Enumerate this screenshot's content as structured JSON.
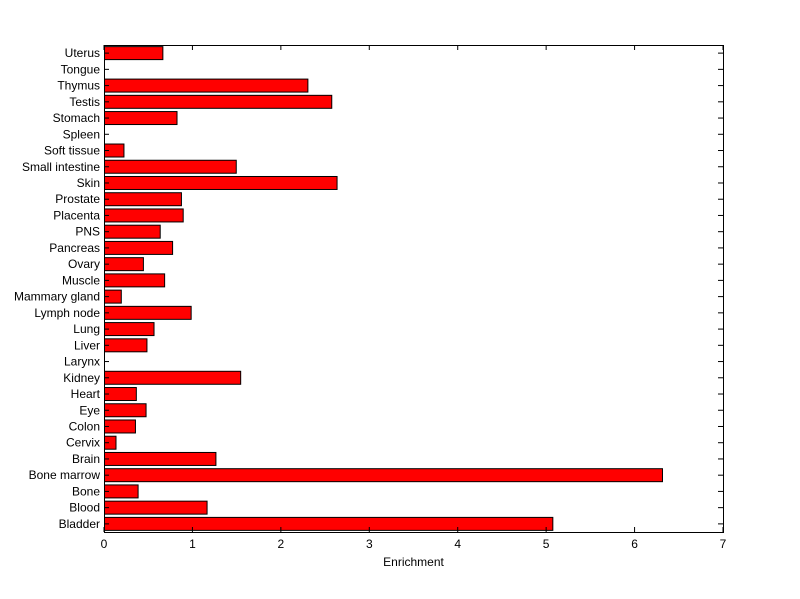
{
  "chart_data": {
    "type": "bar",
    "orientation": "horizontal",
    "title": "",
    "xlabel": "Enrichment",
    "ylabel": "",
    "xlim": [
      0,
      7
    ],
    "xticks": [
      "0",
      "1",
      "2",
      "3",
      "4",
      "5",
      "6",
      "7"
    ],
    "grid": false,
    "bar_color": "#ff0000",
    "bar_edge_color": "#000000",
    "categories": [
      "Bladder",
      "Blood",
      "Bone",
      "Bone marrow",
      "Brain",
      "Cervix",
      "Colon",
      "Eye",
      "Heart",
      "Kidney",
      "Larynx",
      "Liver",
      "Lung",
      "Lymph node",
      "Mammary gland",
      "Muscle",
      "Ovary",
      "Pancreas",
      "PNS",
      "Placenta",
      "Prostate",
      "Skin",
      "Small intestine",
      "Soft tissue",
      "Spleen",
      "Stomach",
      "Testis",
      "Thymus",
      "Tongue",
      "Uterus"
    ],
    "values": [
      5.07,
      1.16,
      0.38,
      6.31,
      1.26,
      0.13,
      0.35,
      0.47,
      0.36,
      1.54,
      0,
      0.48,
      0.56,
      0.98,
      0.19,
      0.68,
      0.44,
      0.77,
      0.63,
      0.89,
      0.87,
      2.63,
      1.49,
      0.22,
      0,
      0.82,
      2.57,
      2.3,
      0,
      0.66
    ]
  }
}
